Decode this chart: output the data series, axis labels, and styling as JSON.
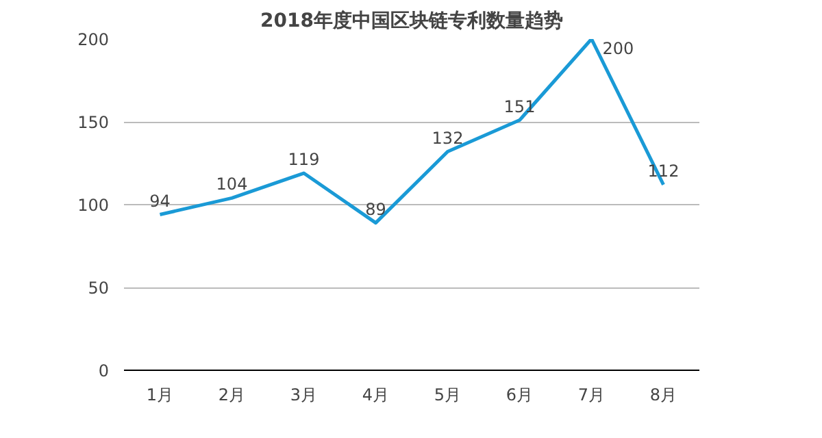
{
  "chart_data": {
    "type": "line",
    "title": "2018年度中国区块链专利数量趋势",
    "categories": [
      "1月",
      "2月",
      "3月",
      "4月",
      "5月",
      "6月",
      "7月",
      "8月"
    ],
    "series": [
      {
        "color": "#1a9ad6",
        "values": [
          94,
          104,
          119,
          89,
          132,
          151,
          200,
          112
        ]
      }
    ],
    "ylim": [
      0,
      200
    ],
    "yticks": [
      0,
      50,
      100,
      150,
      200
    ],
    "grid": "y",
    "data_labels": true,
    "marker": "none",
    "line_style": "solid"
  }
}
